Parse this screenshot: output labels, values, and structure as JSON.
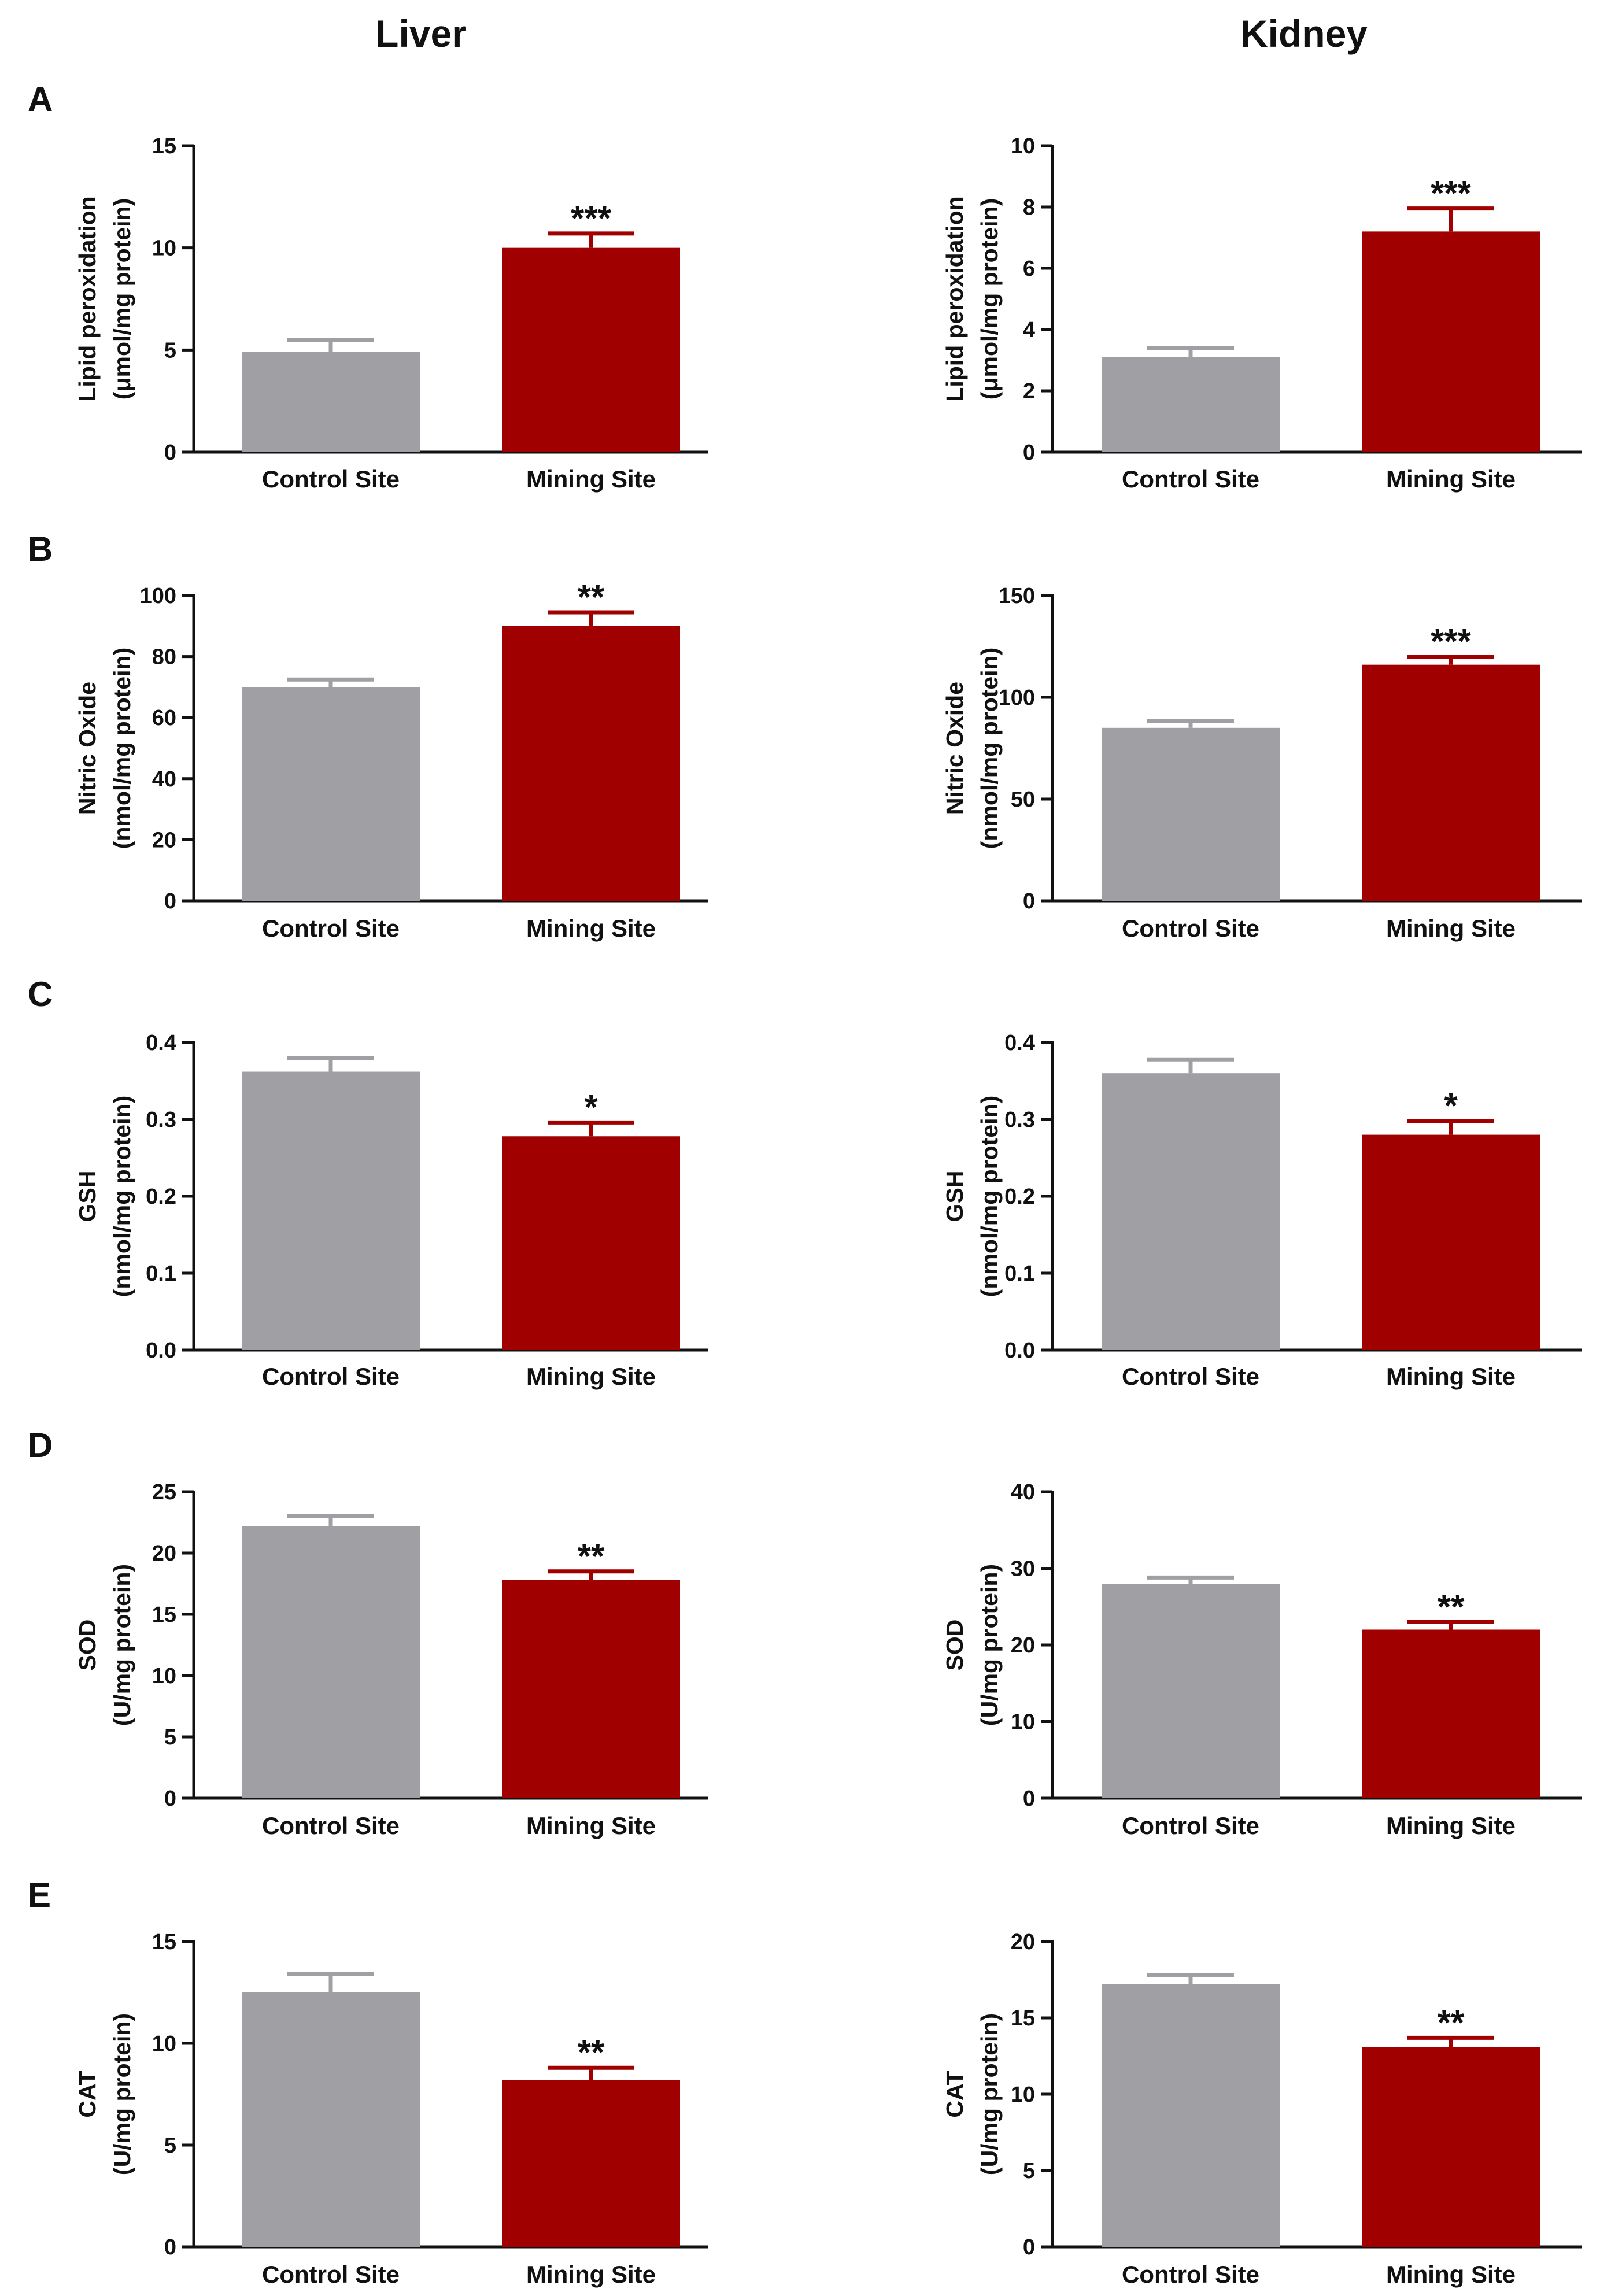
{
  "figure": {
    "column_titles": [
      "Liver",
      "Kidney"
    ],
    "colors": {
      "control": "#a0a0a4",
      "mining": "#a00000",
      "axis": "#111111"
    }
  },
  "chart_data": [
    {
      "panel": "A",
      "type": "bar",
      "organ": "Liver",
      "ylabel": [
        "Lipid peroxidation",
        "(μmol/mg protein)"
      ],
      "xlabel": "",
      "categories": [
        "Control Site",
        "Mining Site"
      ],
      "values": [
        4.9,
        10.0
      ],
      "errors": [
        0.6,
        0.7
      ],
      "significance": [
        "",
        "***"
      ],
      "ylim": [
        0,
        15
      ],
      "yticks": [
        "0",
        "5",
        "10",
        "15"
      ],
      "ytick_values": [
        0,
        5,
        10,
        15
      ]
    },
    {
      "panel": "",
      "type": "bar",
      "organ": "Kidney",
      "ylabel": [
        "Lipid peroxidation",
        "(μmol/mg protein)"
      ],
      "xlabel": "",
      "categories": [
        "Control Site",
        "Mining Site"
      ],
      "values": [
        3.1,
        7.2
      ],
      "errors": [
        0.3,
        0.75
      ],
      "significance": [
        "",
        "***"
      ],
      "ylim": [
        0,
        10
      ],
      "yticks": [
        "0",
        "2",
        "4",
        "6",
        "8",
        "10"
      ],
      "ytick_values": [
        0,
        2,
        4,
        6,
        8,
        10
      ]
    },
    {
      "panel": "B",
      "type": "bar",
      "organ": "Liver",
      "ylabel": [
        "Nitric Oxide",
        "(nmol/mg protein)"
      ],
      "xlabel": "",
      "categories": [
        "Control Site",
        "Mining Site"
      ],
      "values": [
        70,
        90
      ],
      "errors": [
        2.5,
        4.5
      ],
      "significance": [
        "",
        "**"
      ],
      "ylim": [
        0,
        100
      ],
      "yticks": [
        "0",
        "20",
        "40",
        "60",
        "80",
        "100"
      ],
      "ytick_values": [
        0,
        20,
        40,
        60,
        80,
        100
      ]
    },
    {
      "panel": "",
      "type": "bar",
      "organ": "Kidney",
      "ylabel": [
        "Nitric Oxide",
        "(nmol/mg protein)"
      ],
      "xlabel": "",
      "categories": [
        "Control Site",
        "Mining Site"
      ],
      "values": [
        85,
        116
      ],
      "errors": [
        3.5,
        4
      ],
      "significance": [
        "",
        "***"
      ],
      "ylim": [
        0,
        150
      ],
      "yticks": [
        "0",
        "50",
        "100",
        "150"
      ],
      "ytick_values": [
        0,
        50,
        100,
        150
      ]
    },
    {
      "panel": "C",
      "type": "bar",
      "organ": "Liver",
      "ylabel": [
        "GSH",
        "(nmol/mg protein)"
      ],
      "xlabel": "",
      "categories": [
        "Control Site",
        "Mining Site"
      ],
      "values": [
        0.362,
        0.278
      ],
      "errors": [
        0.018,
        0.018
      ],
      "significance": [
        "",
        "*"
      ],
      "ylim": [
        0,
        0.4
      ],
      "yticks": [
        "0.0",
        "0.1",
        "0.2",
        "0.3",
        "0.4"
      ],
      "ytick_values": [
        0,
        0.1,
        0.2,
        0.3,
        0.4
      ]
    },
    {
      "panel": "",
      "type": "bar",
      "organ": "Kidney",
      "ylabel": [
        "GSH",
        "(nmol/mg protein)"
      ],
      "xlabel": "",
      "categories": [
        "Control Site",
        "Mining Site"
      ],
      "values": [
        0.36,
        0.28
      ],
      "errors": [
        0.018,
        0.018
      ],
      "significance": [
        "",
        "*"
      ],
      "ylim": [
        0,
        0.4
      ],
      "yticks": [
        "0.0",
        "0.1",
        "0.2",
        "0.3",
        "0.4"
      ],
      "ytick_values": [
        0,
        0.1,
        0.2,
        0.3,
        0.4
      ]
    },
    {
      "panel": "D",
      "type": "bar",
      "organ": "Liver",
      "ylabel": [
        "SOD",
        "(U/mg protein)"
      ],
      "xlabel": "",
      "categories": [
        "Control Site",
        "Mining Site"
      ],
      "values": [
        22.2,
        17.8
      ],
      "errors": [
        0.8,
        0.7
      ],
      "significance": [
        "",
        "**"
      ],
      "ylim": [
        0,
        25
      ],
      "yticks": [
        "0",
        "5",
        "10",
        "15",
        "20",
        "25"
      ],
      "ytick_values": [
        0,
        5,
        10,
        15,
        20,
        25
      ]
    },
    {
      "panel": "",
      "type": "bar",
      "organ": "Kidney",
      "ylabel": [
        "SOD",
        "(U/mg protein)"
      ],
      "xlabel": "",
      "categories": [
        "Control Site",
        "Mining Site"
      ],
      "values": [
        28,
        22
      ],
      "errors": [
        0.8,
        1.0
      ],
      "significance": [
        "",
        "**"
      ],
      "ylim": [
        0,
        40
      ],
      "yticks": [
        "0",
        "10",
        "20",
        "30",
        "40"
      ],
      "ytick_values": [
        0,
        10,
        20,
        30,
        40
      ]
    },
    {
      "panel": "E",
      "type": "bar",
      "organ": "Liver",
      "ylabel": [
        "CAT",
        "(U/mg protein)"
      ],
      "xlabel": "",
      "categories": [
        "Control Site",
        "Mining Site"
      ],
      "values": [
        12.5,
        8.2
      ],
      "errors": [
        0.9,
        0.6
      ],
      "significance": [
        "",
        "**"
      ],
      "ylim": [
        0,
        15
      ],
      "yticks": [
        "0",
        "5",
        "10",
        "15"
      ],
      "ytick_values": [
        0,
        5,
        10,
        15
      ]
    },
    {
      "panel": "",
      "type": "bar",
      "organ": "Kidney",
      "ylabel": [
        "CAT",
        "(U/mg protein)"
      ],
      "xlabel": "",
      "categories": [
        "Control Site",
        "Mining Site"
      ],
      "values": [
        17.2,
        13.1
      ],
      "errors": [
        0.6,
        0.6
      ],
      "significance": [
        "",
        "**"
      ],
      "ylim": [
        0,
        20
      ],
      "yticks": [
        "0",
        "5",
        "10",
        "15",
        "20"
      ],
      "ytick_values": [
        0,
        5,
        10,
        15,
        20
      ]
    }
  ]
}
